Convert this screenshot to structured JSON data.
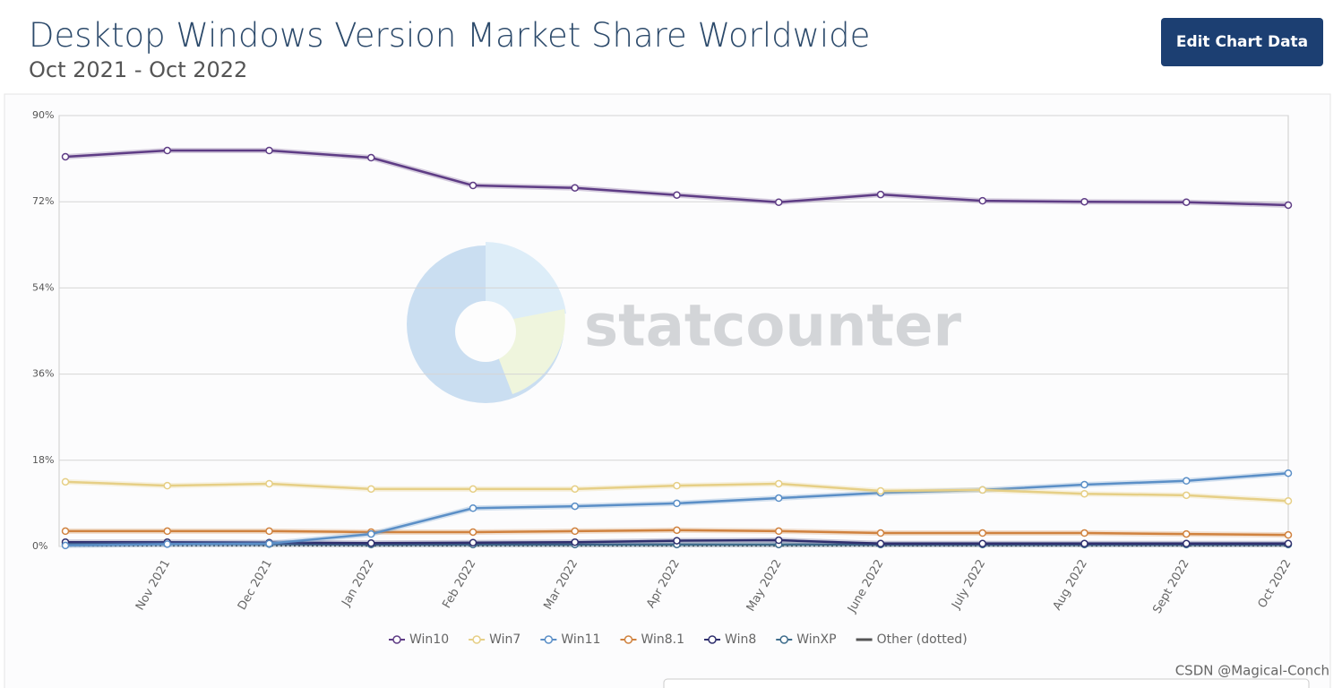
{
  "header": {
    "button": "Edit Chart Data"
  },
  "chart_data": {
    "type": "line",
    "title": "Desktop Windows Version Market Share Worldwide",
    "subtitle": "Oct 2021 - Oct 2022",
    "categories": [
      null,
      "Nov 2021",
      "Dec 2021",
      "Jan 2022",
      "Feb 2022",
      "Mar 2022",
      "Apr 2022",
      "May 2022",
      "June 2022",
      "July 2022",
      "Aug 2022",
      "Sept 2022",
      "Oct 2022"
    ],
    "series": [
      {
        "name": "Win10",
        "color": "#5e3c85",
        "values": [
          81.4,
          82.7,
          82.7,
          81.2,
          75.4,
          74.9,
          73.4,
          71.9,
          73.5,
          72.2,
          72.0,
          71.9,
          71.3
        ]
      },
      {
        "name": "Win7",
        "color": "#e6cf86",
        "values": [
          13.5,
          12.7,
          13.1,
          12.0,
          12.0,
          12.0,
          12.7,
          13.1,
          11.6,
          11.8,
          11.0,
          10.7,
          9.5
        ]
      },
      {
        "name": "Win11",
        "color": "#5b8fc7",
        "values": [
          0.2,
          0.5,
          0.6,
          2.6,
          8.0,
          8.4,
          9.0,
          10.1,
          11.2,
          11.8,
          12.9,
          13.7,
          15.3
        ]
      },
      {
        "name": "Win8.1",
        "color": "#d0823f",
        "values": [
          3.2,
          3.2,
          3.2,
          3.0,
          3.0,
          3.2,
          3.4,
          3.2,
          2.8,
          2.8,
          2.8,
          2.6,
          2.4
        ]
      },
      {
        "name": "Win8",
        "color": "#2f2f6e",
        "values": [
          0.9,
          0.9,
          0.8,
          0.7,
          0.8,
          0.9,
          1.2,
          1.3,
          0.6,
          0.6,
          0.6,
          0.6,
          0.6
        ]
      },
      {
        "name": "WinXP",
        "color": "#3f6d8c",
        "values": [
          0.5,
          0.5,
          0.5,
          0.4,
          0.4,
          0.4,
          0.4,
          0.4,
          0.4,
          0.4,
          0.4,
          0.4,
          0.4
        ]
      },
      {
        "name": "Other (dotted)",
        "color": "#555555",
        "dotted": true,
        "values": [
          0.2,
          0.2,
          0.2,
          0.2,
          0.2,
          0.2,
          0.2,
          0.2,
          0.2,
          0.2,
          0.2,
          0.2,
          0.2
        ]
      }
    ],
    "ylim": [
      0,
      90
    ],
    "yticks": [
      {
        "value": 0,
        "label": "0%"
      },
      {
        "value": 18,
        "label": "18%"
      },
      {
        "value": 36,
        "label": "36%"
      },
      {
        "value": 54,
        "label": "54%"
      },
      {
        "value": 72,
        "label": "72%"
      },
      {
        "value": 90,
        "label": "90%"
      }
    ],
    "grid": true
  },
  "watermark": {
    "logo_text": "statcounter",
    "credit": "CSDN @Magical-Conch"
  }
}
